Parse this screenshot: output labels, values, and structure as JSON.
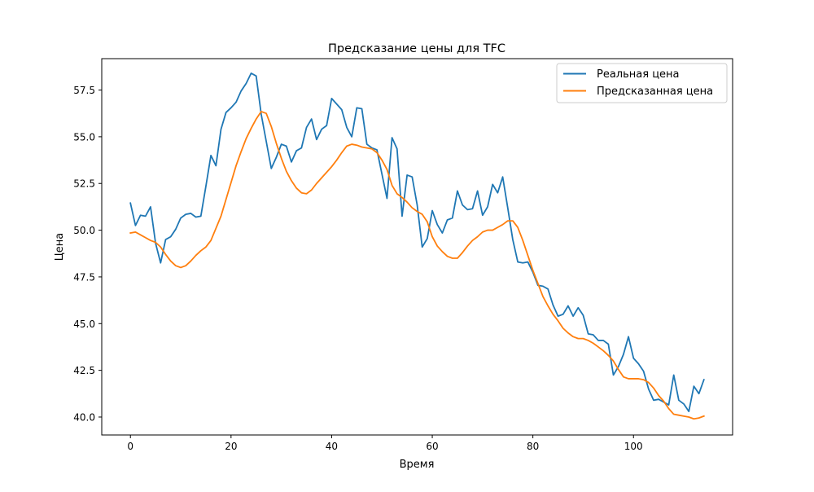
{
  "chart_data": {
    "type": "line",
    "title": "Предсказание цены для TFC",
    "xlabel": "Время",
    "ylabel": "Цена",
    "xlim": [
      -5.7,
      119.7
    ],
    "ylim": [
      39.04,
      59.18
    ],
    "x_ticks": [
      0,
      20,
      40,
      60,
      80,
      100
    ],
    "y_ticks": [
      40.0,
      42.5,
      45.0,
      47.5,
      50.0,
      52.5,
      55.0,
      57.5
    ],
    "grid": false,
    "legend_position": "top-right",
    "series": [
      {
        "name": "Реальная цена",
        "color": "#1f77b4",
        "x_start": 0,
        "values": [
          51.45,
          50.25,
          50.8,
          50.75,
          51.25,
          49.3,
          48.25,
          49.5,
          49.65,
          50.05,
          50.65,
          50.85,
          50.9,
          50.7,
          50.75,
          52.35,
          54.0,
          53.45,
          55.4,
          56.3,
          56.55,
          56.85,
          57.45,
          57.85,
          58.4,
          58.25,
          56.2,
          54.75,
          53.3,
          53.9,
          54.6,
          54.5,
          53.65,
          54.25,
          54.4,
          55.5,
          55.95,
          54.85,
          55.4,
          55.6,
          57.05,
          56.75,
          56.45,
          55.5,
          55.0,
          56.55,
          56.5,
          54.6,
          54.4,
          54.3,
          53.0,
          51.7,
          54.95,
          54.35,
          50.75,
          52.95,
          52.85,
          51.35,
          49.1,
          49.55,
          51.05,
          50.3,
          49.85,
          50.55,
          50.65,
          52.1,
          51.35,
          51.1,
          51.15,
          52.1,
          50.8,
          51.25,
          52.45,
          52.0,
          52.85,
          51.2,
          49.5,
          48.3,
          48.25,
          48.3,
          47.75,
          47.05,
          47.0,
          46.85,
          46.0,
          45.4,
          45.5,
          45.95,
          45.4,
          45.85,
          45.45,
          44.45,
          44.4,
          44.1,
          44.1,
          43.9,
          42.25,
          42.7,
          43.35,
          44.3,
          43.15,
          42.85,
          42.45,
          41.5,
          40.9,
          40.95,
          40.8,
          40.65,
          42.25,
          40.9,
          40.7,
          40.3,
          41.65,
          41.25,
          42.0
        ]
      },
      {
        "name": "Предсказанная цена",
        "color": "#ff7f0e",
        "x_start": 0,
        "values": [
          49.85,
          49.9,
          49.75,
          49.6,
          49.45,
          49.35,
          49.1,
          48.7,
          48.35,
          48.1,
          48.0,
          48.1,
          48.35,
          48.65,
          48.9,
          49.1,
          49.45,
          50.1,
          50.75,
          51.65,
          52.55,
          53.45,
          54.2,
          54.9,
          55.45,
          55.95,
          56.35,
          56.25,
          55.55,
          54.65,
          53.85,
          53.15,
          52.65,
          52.25,
          52.0,
          51.95,
          52.15,
          52.5,
          52.8,
          53.1,
          53.4,
          53.75,
          54.15,
          54.5,
          54.6,
          54.55,
          54.45,
          54.4,
          54.35,
          54.15,
          53.75,
          53.25,
          52.4,
          51.95,
          51.75,
          51.5,
          51.2,
          51.0,
          50.85,
          50.45,
          49.65,
          49.15,
          48.85,
          48.6,
          48.5,
          48.5,
          48.8,
          49.15,
          49.45,
          49.65,
          49.9,
          50.0,
          50.0,
          50.15,
          50.3,
          50.5,
          50.5,
          50.15,
          49.45,
          48.65,
          47.85,
          47.15,
          46.45,
          45.95,
          45.5,
          45.15,
          44.75,
          44.5,
          44.3,
          44.2,
          44.2,
          44.1,
          43.95,
          43.75,
          43.55,
          43.3,
          43.0,
          42.55,
          42.15,
          42.05,
          42.05,
          42.05,
          42.0,
          41.85,
          41.55,
          41.15,
          40.85,
          40.45,
          40.15,
          40.1,
          40.05,
          40.0,
          39.9,
          39.95,
          40.05
        ]
      }
    ]
  }
}
